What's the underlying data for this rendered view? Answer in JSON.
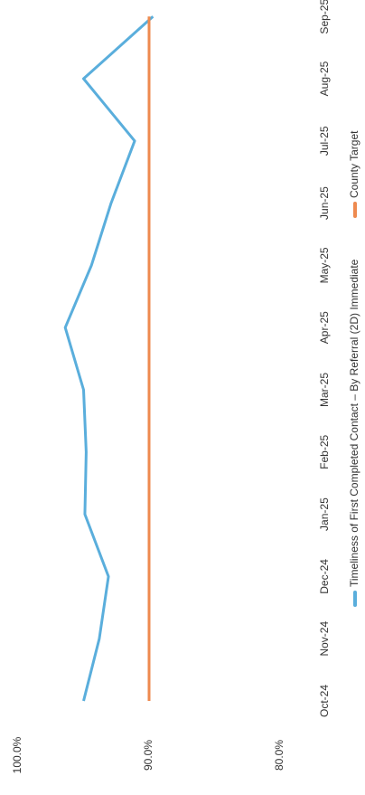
{
  "chart_data": {
    "type": "line",
    "categories": [
      "Oct-24",
      "Nov-24",
      "Dec-24",
      "Jan-25",
      "Feb-25",
      "Mar-25",
      "Apr-25",
      "May-25",
      "Jun-25",
      "Jul-25",
      "Aug-25",
      "Sep-25"
    ],
    "series": [
      {
        "name": "Timeliness of First Completed Contact – By Referral (2D) Immediate",
        "color": "#5aaedc",
        "values": [
          95.0,
          93.8,
          93.1,
          94.9,
          94.8,
          95.0,
          96.4,
          94.4,
          92.9,
          91.1,
          95.0,
          89.7
        ]
      },
      {
        "name": "County Target",
        "color": "#ee8a4f",
        "values": [
          90,
          90,
          90,
          90,
          90,
          90,
          90,
          90,
          90,
          90,
          90,
          90
        ]
      }
    ],
    "ylim": [
      80,
      100
    ],
    "yticks": [
      {
        "value": 80,
        "label": "80.0%"
      },
      {
        "value": 90,
        "label": "90.0%"
      },
      {
        "value": 100,
        "label": "100.0%"
      }
    ],
    "grid": false,
    "legend": "bottom"
  }
}
